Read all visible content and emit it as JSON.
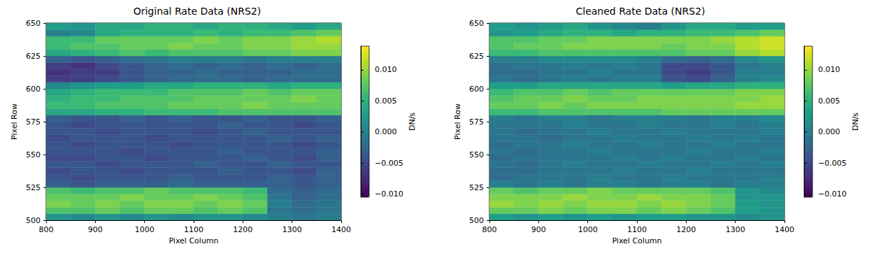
{
  "chart_data": [
    {
      "type": "heatmap",
      "title": "Original Rate Data (NRS2)",
      "x_label": "Pixel Column",
      "y_label": "Pixel Row",
      "xlim": [
        800,
        1400
      ],
      "ylim": [
        500,
        650
      ],
      "xticks": [
        800,
        900,
        1000,
        1100,
        1200,
        1300,
        1400
      ],
      "yticks": [
        500,
        525,
        550,
        575,
        600,
        625,
        650
      ],
      "col_edges": [
        800,
        850,
        900,
        950,
        1000,
        1050,
        1100,
        1150,
        1200,
        1250,
        1300,
        1350,
        1400
      ],
      "row_edges": [
        500,
        505,
        510,
        515,
        520,
        525,
        530,
        535,
        540,
        545,
        550,
        555,
        560,
        565,
        570,
        575,
        580,
        585,
        590,
        595,
        600,
        605,
        610,
        615,
        620,
        625,
        630,
        635,
        640,
        645,
        650
      ],
      "values": [
        [
          0.002,
          0.001,
          0.002,
          0.001,
          0.002,
          0.001,
          0.002,
          0.002,
          0.001,
          0.0,
          -0.001,
          0.0
        ],
        [
          0.007,
          0.007,
          0.008,
          0.007,
          0.008,
          0.008,
          0.007,
          0.008,
          0.007,
          -0.001,
          -0.002,
          -0.001
        ],
        [
          0.009,
          0.008,
          0.009,
          0.008,
          0.009,
          0.009,
          0.008,
          0.009,
          0.008,
          0.0,
          -0.002,
          -0.001
        ],
        [
          0.008,
          0.008,
          0.008,
          0.009,
          0.008,
          0.008,
          0.009,
          0.008,
          0.007,
          -0.001,
          -0.003,
          -0.002
        ],
        [
          0.007,
          0.006,
          0.007,
          0.007,
          0.008,
          0.007,
          0.007,
          0.007,
          0.006,
          -0.002,
          -0.003,
          -0.002
        ],
        [
          -0.003,
          -0.004,
          -0.003,
          -0.003,
          -0.003,
          -0.002,
          -0.003,
          -0.003,
          -0.003,
          -0.003,
          -0.004,
          -0.003
        ],
        [
          -0.004,
          -0.005,
          -0.004,
          -0.004,
          -0.004,
          -0.003,
          -0.004,
          -0.004,
          -0.004,
          -0.003,
          -0.004,
          -0.003
        ],
        [
          -0.005,
          -0.004,
          -0.004,
          -0.005,
          -0.004,
          -0.004,
          -0.004,
          -0.003,
          -0.004,
          -0.004,
          -0.005,
          -0.003
        ],
        [
          -0.004,
          -0.004,
          -0.005,
          -0.004,
          -0.004,
          -0.004,
          -0.003,
          -0.004,
          -0.004,
          -0.003,
          -0.004,
          -0.004
        ],
        [
          -0.005,
          -0.005,
          -0.004,
          -0.004,
          -0.005,
          -0.004,
          -0.004,
          -0.004,
          -0.003,
          -0.004,
          -0.005,
          -0.003
        ],
        [
          -0.004,
          -0.004,
          -0.004,
          -0.005,
          -0.004,
          -0.004,
          -0.004,
          -0.003,
          -0.004,
          -0.004,
          -0.004,
          -0.003
        ],
        [
          -0.004,
          -0.005,
          -0.004,
          -0.004,
          -0.004,
          -0.005,
          -0.004,
          -0.004,
          -0.004,
          -0.004,
          -0.005,
          -0.004
        ],
        [
          -0.005,
          -0.004,
          -0.004,
          -0.004,
          -0.005,
          -0.004,
          -0.004,
          -0.004,
          -0.004,
          -0.003,
          -0.004,
          -0.003
        ],
        [
          -0.004,
          -0.004,
          -0.005,
          -0.004,
          -0.004,
          -0.004,
          -0.005,
          -0.004,
          -0.003,
          -0.004,
          -0.004,
          -0.004
        ],
        [
          -0.004,
          -0.005,
          -0.004,
          -0.004,
          -0.004,
          -0.004,
          -0.004,
          -0.003,
          -0.004,
          -0.004,
          -0.005,
          -0.004
        ],
        [
          -0.003,
          -0.004,
          -0.004,
          -0.003,
          -0.004,
          -0.003,
          -0.004,
          -0.004,
          -0.003,
          -0.004,
          -0.004,
          -0.003
        ],
        [
          0.004,
          0.004,
          0.005,
          0.005,
          0.006,
          0.006,
          0.006,
          0.007,
          0.007,
          0.007,
          0.007,
          0.007
        ],
        [
          0.006,
          0.006,
          0.007,
          0.007,
          0.007,
          0.008,
          0.008,
          0.008,
          0.009,
          0.008,
          0.008,
          0.008
        ],
        [
          0.005,
          0.006,
          0.006,
          0.007,
          0.007,
          0.007,
          0.008,
          0.008,
          0.008,
          0.008,
          0.009,
          0.008
        ],
        [
          0.004,
          0.005,
          0.006,
          0.006,
          0.006,
          0.007,
          0.007,
          0.007,
          0.008,
          0.007,
          0.008,
          0.008
        ],
        [
          0.001,
          0.002,
          0.003,
          0.003,
          0.004,
          0.004,
          0.005,
          0.005,
          0.005,
          0.004,
          0.005,
          0.005
        ],
        [
          -0.006,
          -0.006,
          -0.005,
          -0.004,
          -0.003,
          -0.002,
          -0.002,
          -0.002,
          -0.003,
          -0.002,
          -0.002,
          -0.002
        ],
        [
          -0.007,
          -0.006,
          -0.006,
          -0.004,
          -0.003,
          -0.003,
          -0.002,
          -0.003,
          -0.003,
          -0.003,
          -0.002,
          -0.002
        ],
        [
          -0.006,
          -0.007,
          -0.005,
          -0.004,
          -0.003,
          -0.002,
          -0.003,
          -0.002,
          -0.003,
          -0.002,
          -0.003,
          -0.002
        ],
        [
          -0.003,
          -0.004,
          -0.003,
          -0.002,
          -0.001,
          0.0,
          0.0,
          0.0,
          -0.001,
          0.0,
          0.0,
          0.0
        ],
        [
          0.004,
          0.005,
          0.006,
          0.007,
          0.006,
          0.007,
          0.007,
          0.007,
          0.008,
          0.008,
          0.009,
          0.009
        ],
        [
          0.006,
          0.007,
          0.007,
          0.008,
          0.008,
          0.009,
          0.008,
          0.008,
          0.009,
          0.009,
          0.01,
          0.01
        ],
        [
          0.006,
          0.006,
          0.008,
          0.008,
          0.008,
          0.008,
          0.009,
          0.008,
          0.009,
          0.009,
          0.01,
          0.011
        ],
        [
          0.0,
          0.001,
          0.004,
          0.005,
          0.005,
          0.005,
          0.006,
          0.005,
          0.006,
          0.006,
          0.007,
          0.008
        ],
        [
          0.003,
          0.002,
          0.004,
          0.004,
          0.005,
          0.005,
          0.004,
          0.005,
          0.005,
          0.004,
          0.003,
          0.004
        ]
      ],
      "colorbar": {
        "label": "DN/s",
        "range": [
          -0.0105,
          0.0138
        ],
        "ticks": [
          {
            "value": -0.01,
            "label": "−0.010"
          },
          {
            "value": -0.005,
            "label": "−0.005"
          },
          {
            "value": 0,
            "label": "0.000"
          },
          {
            "value": 0.005,
            "label": "0.005"
          },
          {
            "value": 0.01,
            "label": "0.010"
          }
        ]
      }
    },
    {
      "type": "heatmap",
      "title": "Cleaned Rate Data (NRS2)",
      "x_label": "Pixel Column",
      "y_label": "Pixel Row",
      "xlim": [
        800,
        1400
      ],
      "ylim": [
        500,
        650
      ],
      "xticks": [
        800,
        900,
        1000,
        1100,
        1200,
        1300,
        1400
      ],
      "yticks": [
        500,
        525,
        550,
        575,
        600,
        625,
        650
      ],
      "col_edges": [
        800,
        850,
        900,
        950,
        1000,
        1050,
        1100,
        1150,
        1200,
        1250,
        1300,
        1350,
        1400
      ],
      "row_edges": [
        500,
        505,
        510,
        515,
        520,
        525,
        530,
        535,
        540,
        545,
        550,
        555,
        560,
        565,
        570,
        575,
        580,
        585,
        590,
        595,
        600,
        605,
        610,
        615,
        620,
        625,
        630,
        635,
        640,
        645,
        650
      ],
      "values": [
        [
          0.003,
          0.002,
          0.003,
          0.002,
          0.003,
          0.002,
          0.003,
          0.003,
          0.002,
          0.002,
          0.001,
          0.002
        ],
        [
          0.008,
          0.008,
          0.009,
          0.008,
          0.009,
          0.009,
          0.008,
          0.009,
          0.008,
          0.007,
          0.003,
          0.002
        ],
        [
          0.01,
          0.009,
          0.01,
          0.009,
          0.01,
          0.01,
          0.009,
          0.01,
          0.009,
          0.008,
          0.003,
          0.002
        ],
        [
          0.009,
          0.009,
          0.009,
          0.01,
          0.009,
          0.009,
          0.01,
          0.009,
          0.009,
          0.008,
          0.002,
          0.002
        ],
        [
          0.008,
          0.007,
          0.008,
          0.008,
          0.009,
          0.008,
          0.008,
          0.008,
          0.008,
          0.007,
          0.002,
          0.001
        ],
        [
          0.0,
          -0.001,
          0.0,
          -0.001,
          0.0,
          0.0,
          -0.001,
          0.0,
          0.0,
          -0.001,
          0.0,
          0.0
        ],
        [
          -0.002,
          -0.001,
          -0.001,
          -0.001,
          0.0,
          -0.001,
          -0.001,
          0.0,
          -0.001,
          -0.001,
          -0.001,
          0.0
        ],
        [
          -0.002,
          -0.002,
          -0.001,
          -0.001,
          -0.001,
          0.0,
          -0.001,
          -0.001,
          0.0,
          -0.001,
          -0.001,
          -0.001
        ],
        [
          -0.001,
          -0.002,
          -0.001,
          0.0,
          -0.001,
          -0.001,
          0.0,
          -0.001,
          -0.001,
          0.0,
          -0.001,
          0.0
        ],
        [
          -0.002,
          -0.001,
          -0.001,
          -0.001,
          -0.001,
          0.0,
          -0.001,
          0.0,
          -0.001,
          -0.001,
          0.0,
          -0.001
        ],
        [
          -0.001,
          -0.002,
          -0.001,
          -0.001,
          0.0,
          -0.001,
          -0.001,
          -0.001,
          0.0,
          -0.001,
          -0.001,
          0.0
        ],
        [
          -0.002,
          -0.001,
          -0.001,
          0.0,
          -0.001,
          -0.001,
          0.0,
          -0.001,
          -0.001,
          0.0,
          -0.001,
          -0.001
        ],
        [
          -0.001,
          -0.001,
          -0.002,
          -0.001,
          -0.001,
          0.0,
          -0.001,
          -0.001,
          0.0,
          -0.001,
          0.0,
          -0.001
        ],
        [
          -0.001,
          -0.002,
          -0.001,
          -0.001,
          0.0,
          -0.001,
          -0.001,
          0.0,
          -0.001,
          -0.001,
          -0.001,
          0.0
        ],
        [
          -0.001,
          -0.001,
          -0.001,
          0.0,
          -0.001,
          -0.001,
          0.0,
          -0.001,
          -0.001,
          0.0,
          -0.001,
          0.0
        ],
        [
          0.0,
          -0.001,
          0.0,
          0.0,
          -0.001,
          0.0,
          0.0,
          0.0,
          -0.001,
          0.0,
          0.0,
          0.001
        ],
        [
          0.006,
          0.006,
          0.007,
          0.007,
          0.007,
          0.007,
          0.007,
          0.008,
          0.008,
          0.008,
          0.008,
          0.008
        ],
        [
          0.008,
          0.008,
          0.009,
          0.008,
          0.009,
          0.009,
          0.009,
          0.009,
          0.009,
          0.009,
          0.01,
          0.01
        ],
        [
          0.007,
          0.008,
          0.008,
          0.009,
          0.008,
          0.008,
          0.009,
          0.009,
          0.009,
          0.009,
          0.009,
          0.01
        ],
        [
          0.006,
          0.007,
          0.007,
          0.008,
          0.007,
          0.008,
          0.008,
          0.008,
          0.008,
          0.008,
          0.009,
          0.009
        ],
        [
          0.003,
          0.003,
          0.004,
          0.004,
          0.004,
          0.004,
          0.004,
          0.003,
          0.004,
          0.004,
          0.005,
          0.005
        ],
        [
          -0.001,
          -0.002,
          -0.001,
          0.0,
          -0.001,
          0.0,
          0.0,
          -0.004,
          -0.005,
          -0.003,
          0.0,
          0.001
        ],
        [
          -0.002,
          -0.002,
          -0.001,
          -0.001,
          0.0,
          -0.001,
          -0.001,
          -0.005,
          -0.006,
          -0.004,
          0.0,
          0.0
        ],
        [
          -0.002,
          -0.001,
          -0.001,
          0.0,
          -0.001,
          0.0,
          -0.001,
          -0.005,
          -0.005,
          -0.004,
          -0.001,
          0.0
        ],
        [
          0.0,
          0.0,
          0.001,
          0.001,
          0.001,
          0.001,
          0.0,
          -0.002,
          -0.003,
          -0.002,
          0.001,
          0.002
        ],
        [
          0.006,
          0.006,
          0.007,
          0.007,
          0.007,
          0.007,
          0.007,
          0.007,
          0.008,
          0.008,
          0.01,
          0.011
        ],
        [
          0.007,
          0.008,
          0.008,
          0.009,
          0.009,
          0.009,
          0.009,
          0.008,
          0.009,
          0.009,
          0.011,
          0.012
        ],
        [
          0.007,
          0.007,
          0.008,
          0.008,
          0.009,
          0.009,
          0.009,
          0.009,
          0.009,
          0.01,
          0.011,
          0.012
        ],
        [
          0.002,
          0.003,
          0.004,
          0.005,
          0.005,
          0.004,
          0.005,
          0.005,
          0.006,
          0.006,
          0.007,
          0.008
        ],
        [
          0.003,
          0.002,
          0.003,
          0.004,
          0.002,
          0.001,
          0.0,
          0.002,
          0.004,
          0.004,
          0.003,
          0.003
        ]
      ],
      "colorbar": {
        "label": "DN/s",
        "range": [
          -0.0105,
          0.0138
        ],
        "ticks": [
          {
            "value": -0.01,
            "label": "−0.010"
          },
          {
            "value": -0.005,
            "label": "−0.005"
          },
          {
            "value": 0,
            "label": "0.000"
          },
          {
            "value": 0.005,
            "label": "0.005"
          },
          {
            "value": 0.01,
            "label": "0.010"
          }
        ]
      }
    }
  ]
}
